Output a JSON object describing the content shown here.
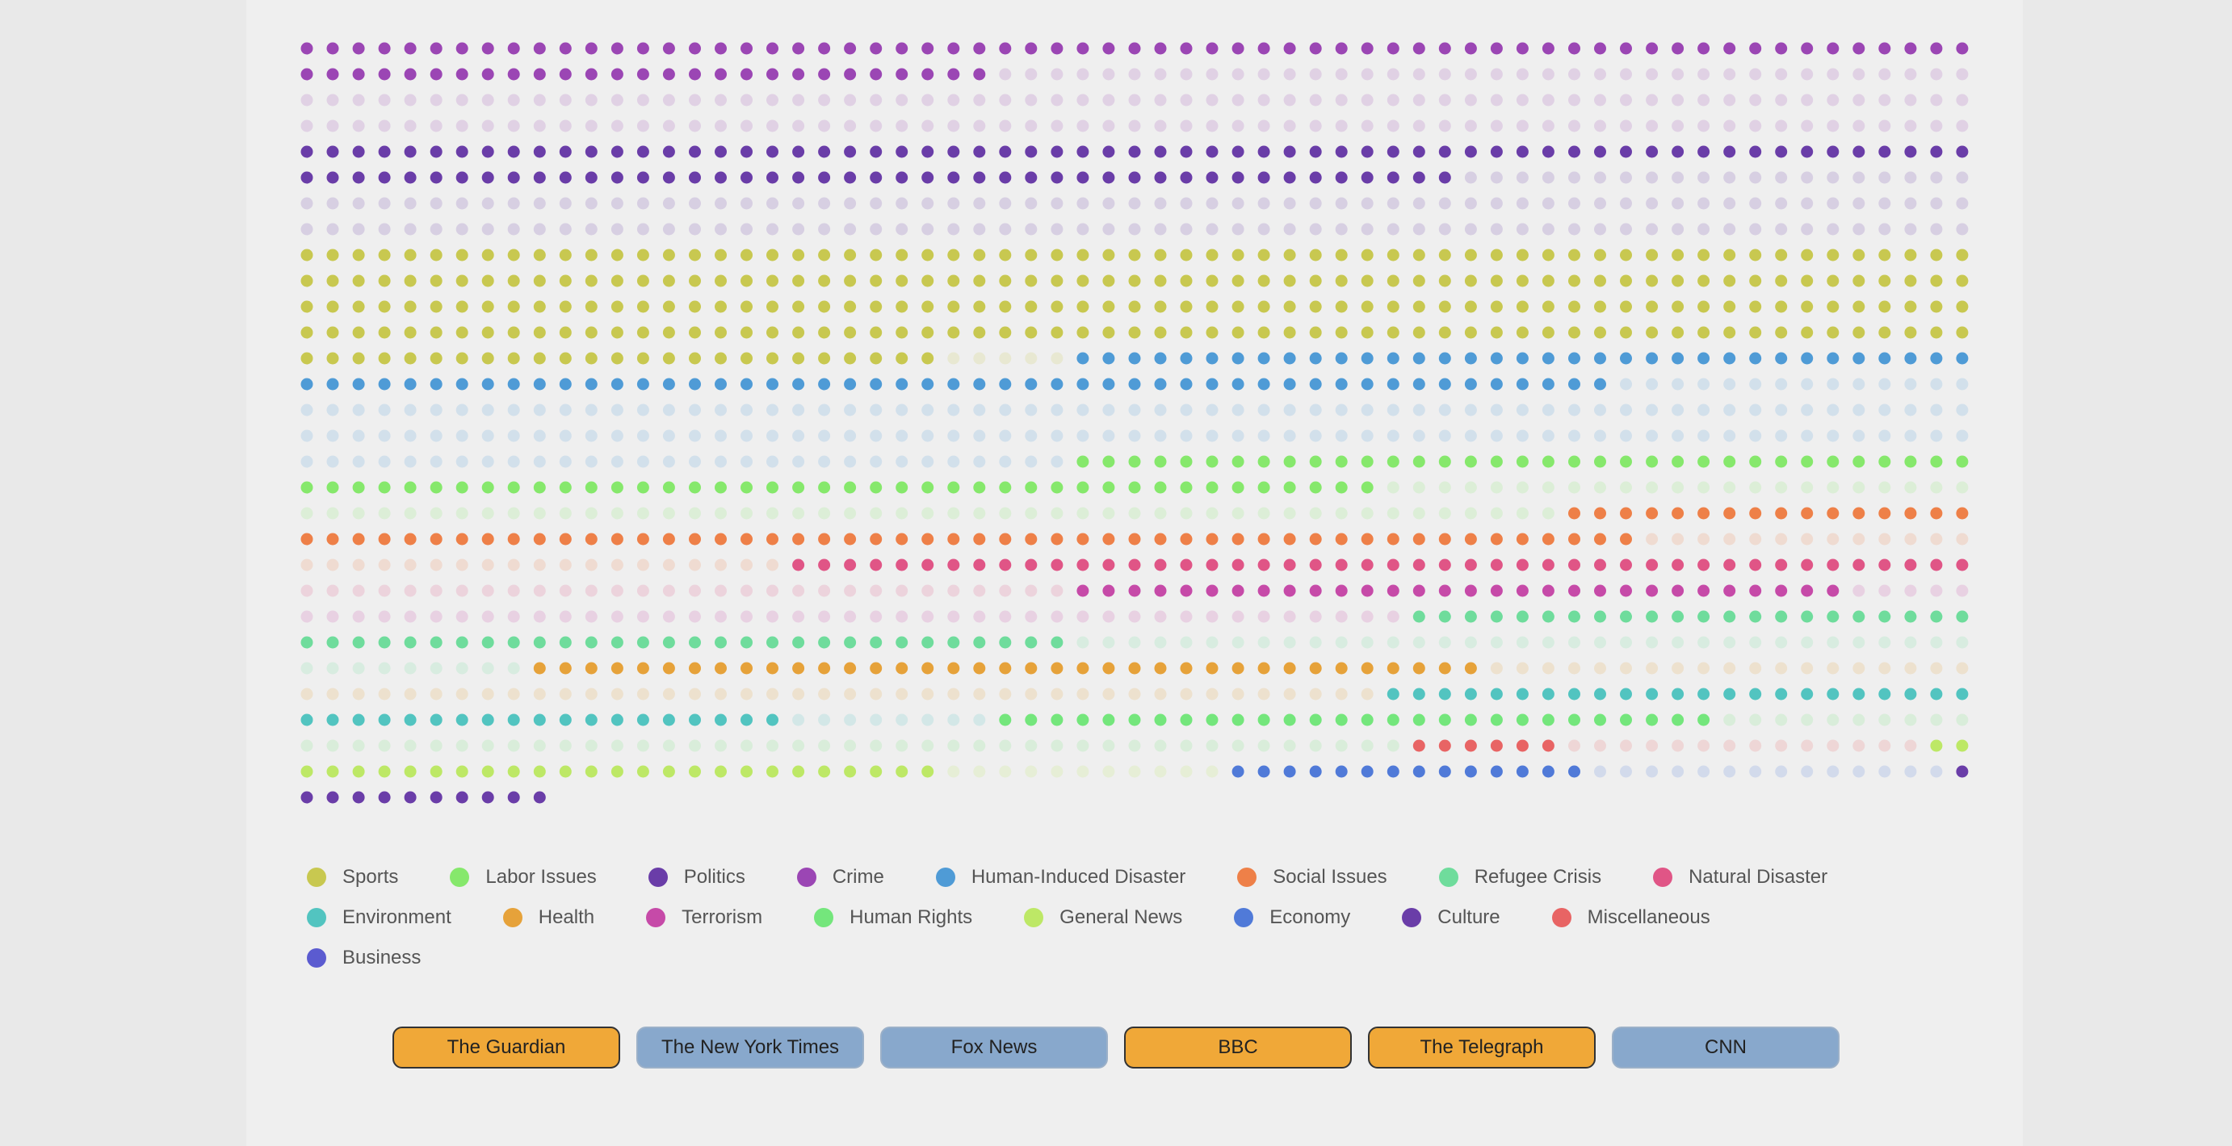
{
  "chart_data": {
    "type": "dot-matrix",
    "columns": 65,
    "rows": 30,
    "unit": "one dot per article",
    "series": [
      {
        "name": "Crime",
        "color": "#9b46b4",
        "highlighted": 92,
        "total": 260
      },
      {
        "name": "Politics",
        "color": "#6a3da8",
        "highlighted": 110,
        "total": 260
      },
      {
        "name": "Sports",
        "color": "#c8c850",
        "highlighted": 285,
        "total": 290
      },
      {
        "name": "Human-Induced Disaster",
        "color": "#4f9bd6",
        "highlighted": 86,
        "total": 260
      },
      {
        "name": "Labor Issues",
        "color": "#86e86c",
        "highlighted": 77,
        "total": 149
      },
      {
        "name": "Social Issues",
        "color": "#ee8048",
        "highlighted": 68,
        "total": 100
      },
      {
        "name": "Natural Disaster",
        "color": "#e05586",
        "highlighted": 46,
        "total": 76
      },
      {
        "name": "Terrorism",
        "color": "#c64aa8",
        "highlighted": 30,
        "total": 78
      },
      {
        "name": "Refugee Crisis",
        "color": "#6fdc9c",
        "highlighted": 52,
        "total": 96
      },
      {
        "name": "Health",
        "color": "#e6a23a",
        "highlighted": 37,
        "total": 98
      },
      {
        "name": "Environment",
        "color": "#52c4c0",
        "highlighted": 42,
        "total": 50
      },
      {
        "name": "Human Rights",
        "color": "#74e67c",
        "highlighted": 28,
        "total": 81
      },
      {
        "name": "Miscellaneous",
        "color": "#e86464",
        "highlighted": 6,
        "total": 20
      },
      {
        "name": "General News",
        "color": "#bde866",
        "highlighted": 27,
        "total": 38
      },
      {
        "name": "Economy",
        "color": "#507ad8",
        "highlighted": 14,
        "total": 28
      },
      {
        "name": "Culture",
        "color": "#6a3da8",
        "highlighted": 11,
        "total": 11
      }
    ],
    "legend": [
      {
        "label": "Sports",
        "color": "#c8c850"
      },
      {
        "label": "Labor Issues",
        "color": "#86e86c"
      },
      {
        "label": "Politics",
        "color": "#6a3da8"
      },
      {
        "label": "Crime",
        "color": "#9b46b4"
      },
      {
        "label": "Human-Induced Disaster",
        "color": "#4f9bd6"
      },
      {
        "label": "Social Issues",
        "color": "#ee8048"
      },
      {
        "label": "Refugee Crisis",
        "color": "#6fdc9c"
      },
      {
        "label": "Natural Disaster",
        "color": "#e05586"
      },
      {
        "label": "Environment",
        "color": "#52c4c0"
      },
      {
        "label": "Health",
        "color": "#e6a23a"
      },
      {
        "label": "Terrorism",
        "color": "#c64aa8"
      },
      {
        "label": "Human Rights",
        "color": "#74e67c"
      },
      {
        "label": "General News",
        "color": "#bde866"
      },
      {
        "label": "Economy",
        "color": "#507ad8"
      },
      {
        "label": "Culture",
        "color": "#6a3da8"
      },
      {
        "label": "Miscellaneous",
        "color": "#e86464"
      },
      {
        "label": "Business",
        "color": "#5b5bd0"
      }
    ]
  },
  "sources": [
    {
      "label": "The Guardian",
      "active": true
    },
    {
      "label": "The New York Times",
      "active": false
    },
    {
      "label": "Fox News",
      "active": false
    },
    {
      "label": "BBC",
      "active": true
    },
    {
      "label": "The Telegraph",
      "active": true
    },
    {
      "label": "CNN",
      "active": false
    }
  ],
  "colors": {
    "active_button": "#f0a838",
    "inactive_button": "#88a8cc",
    "background": "#efefef"
  }
}
